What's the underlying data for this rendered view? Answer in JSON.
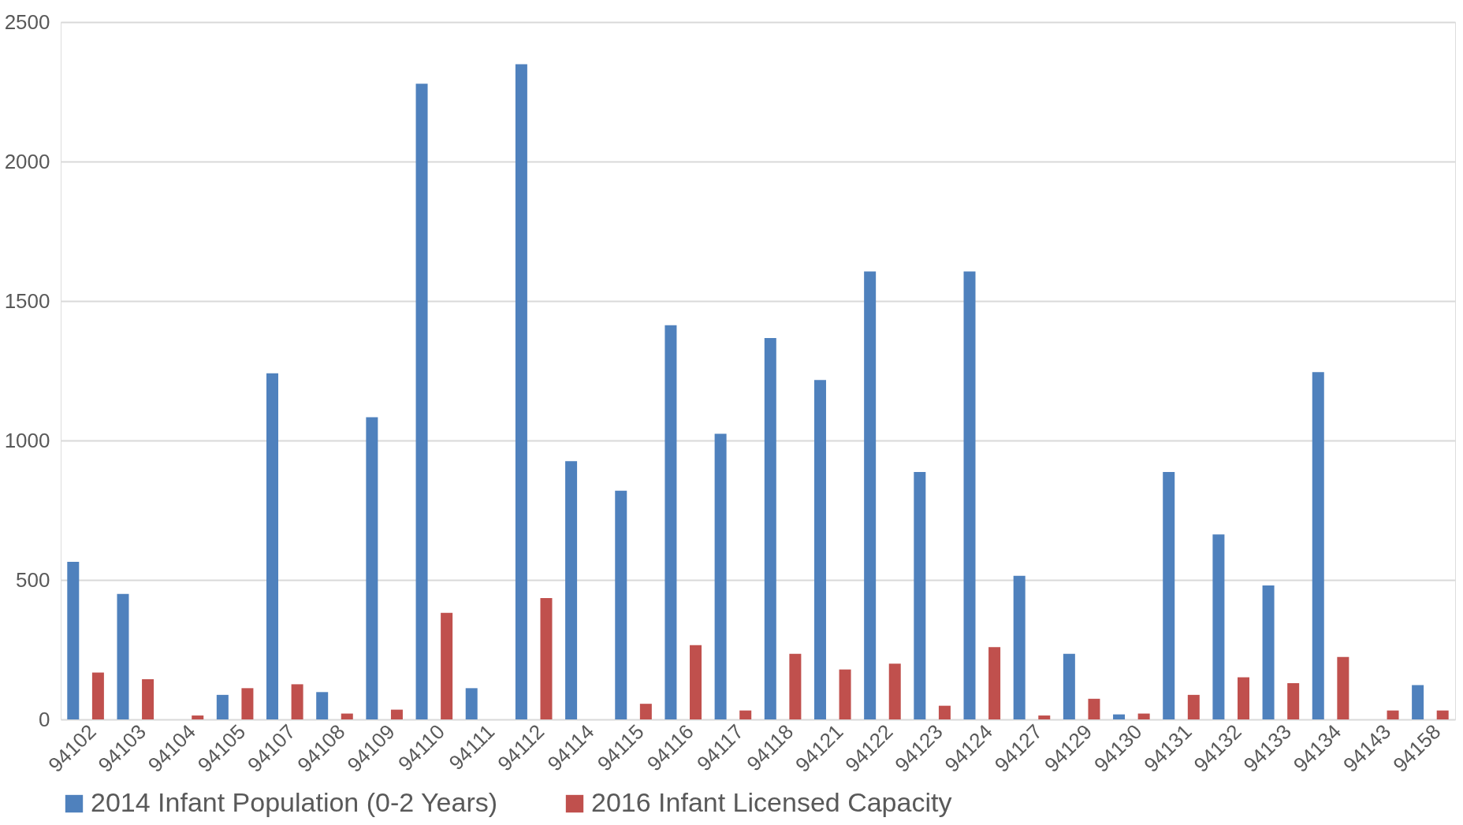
{
  "chart_data": {
    "type": "bar",
    "categories": [
      "94102",
      "94103",
      "94104",
      "94105",
      "94107",
      "94108",
      "94109",
      "94110",
      "94111",
      "94112",
      "94114",
      "94115",
      "94116",
      "94117",
      "94118",
      "94121",
      "94122",
      "94123",
      "94124",
      "94127",
      "94129",
      "94130",
      "94131",
      "94132",
      "94133",
      "94134",
      "94143",
      "94158"
    ],
    "series": [
      {
        "name": "2014 Infant Population (0-2 Years)",
        "color": "#4f81bd",
        "values": [
          565,
          450,
          0,
          88,
          1241,
          98,
          1083,
          2279,
          112,
          2349,
          926,
          820,
          1413,
          1024,
          1367,
          1217,
          1606,
          887,
          1606,
          515,
          235,
          18,
          887,
          663,
          480,
          1245,
          0,
          123
        ]
      },
      {
        "name": "2016 Infant Licensed Capacity",
        "color": "#c0504d",
        "values": [
          168,
          144,
          14,
          112,
          126,
          21,
          35,
          382,
          0,
          435,
          0,
          56,
          266,
          32,
          235,
          179,
          200,
          49,
          259,
          14,
          74,
          21,
          88,
          151,
          130,
          224,
          32,
          32
        ]
      }
    ],
    "ylim": [
      0,
      2500
    ],
    "yticks": [
      0,
      500,
      1000,
      1500,
      2000,
      2500
    ],
    "grid": "y",
    "legend": "bottom"
  }
}
